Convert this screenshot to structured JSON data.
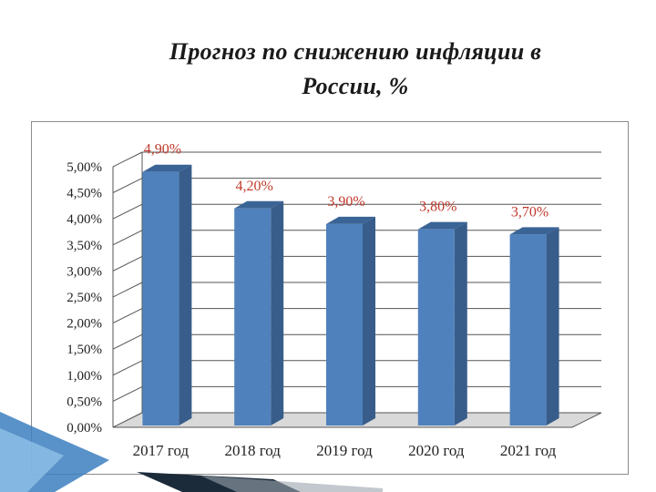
{
  "slide": {
    "title_line1": "Прогноз по снижению инфляции в",
    "title_line2": "России, %"
  },
  "colors": {
    "bar_front": "#4f81bd",
    "bar_side": "#385d8a",
    "bar_top": "#3a6496",
    "grid": "#555555",
    "floor": "#d9d9d9",
    "deco_blue": "#3c7fc0",
    "deco_dark": "#1c2b3a"
  },
  "chart_data": {
    "type": "bar",
    "title": "",
    "xlabel": "",
    "ylabel": "",
    "categories": [
      "2017 год",
      "2018 год",
      "2019 год",
      "2020 год",
      "2021 год"
    ],
    "values": [
      4.9,
      4.2,
      3.9,
      3.8,
      3.7
    ],
    "value_labels": [
      "4,90%",
      "4,20%",
      "3,90%",
      "3,80%",
      "3,70%"
    ],
    "ylim": [
      0,
      5
    ],
    "yticks": [
      0,
      0.5,
      1,
      1.5,
      2,
      2.5,
      3,
      3.5,
      4,
      4.5,
      5
    ],
    "ytick_labels": [
      "0,00%",
      "0,50%",
      "1,00%",
      "1,50%",
      "2,00%",
      "2,50%",
      "3,00%",
      "3,50%",
      "4,00%",
      "4,50%",
      "5,00%"
    ],
    "grid": true,
    "legend": "none",
    "style": "3d-column"
  }
}
